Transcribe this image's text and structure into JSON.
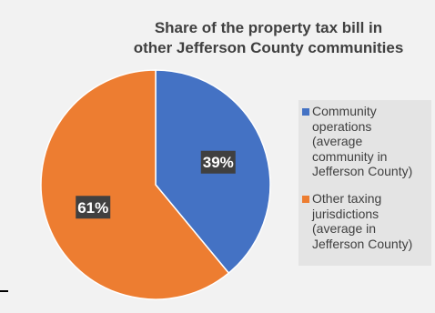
{
  "chart_data": {
    "type": "pie",
    "title": "Share of the property tax bill in other Jefferson County communities",
    "title_lines": [
      "Share of the property tax bill in",
      "other Jefferson County communities"
    ],
    "slices": [
      {
        "name": "Community operations (average community in Jefferson County)",
        "legend_lines": [
          "Community",
          "operations",
          "(average",
          "community in",
          "Jefferson County)"
        ],
        "value": 39,
        "label": "39%",
        "color": "#4472c4"
      },
      {
        "name": "Other taxing jurisdictions (average in Jefferson County)",
        "legend_lines": [
          "Other taxing",
          "jurisdictions",
          "(average in",
          "Jefferson County)"
        ],
        "value": 61,
        "label": "61%",
        "color": "#ed7d31"
      }
    ],
    "legend_position": "right"
  }
}
